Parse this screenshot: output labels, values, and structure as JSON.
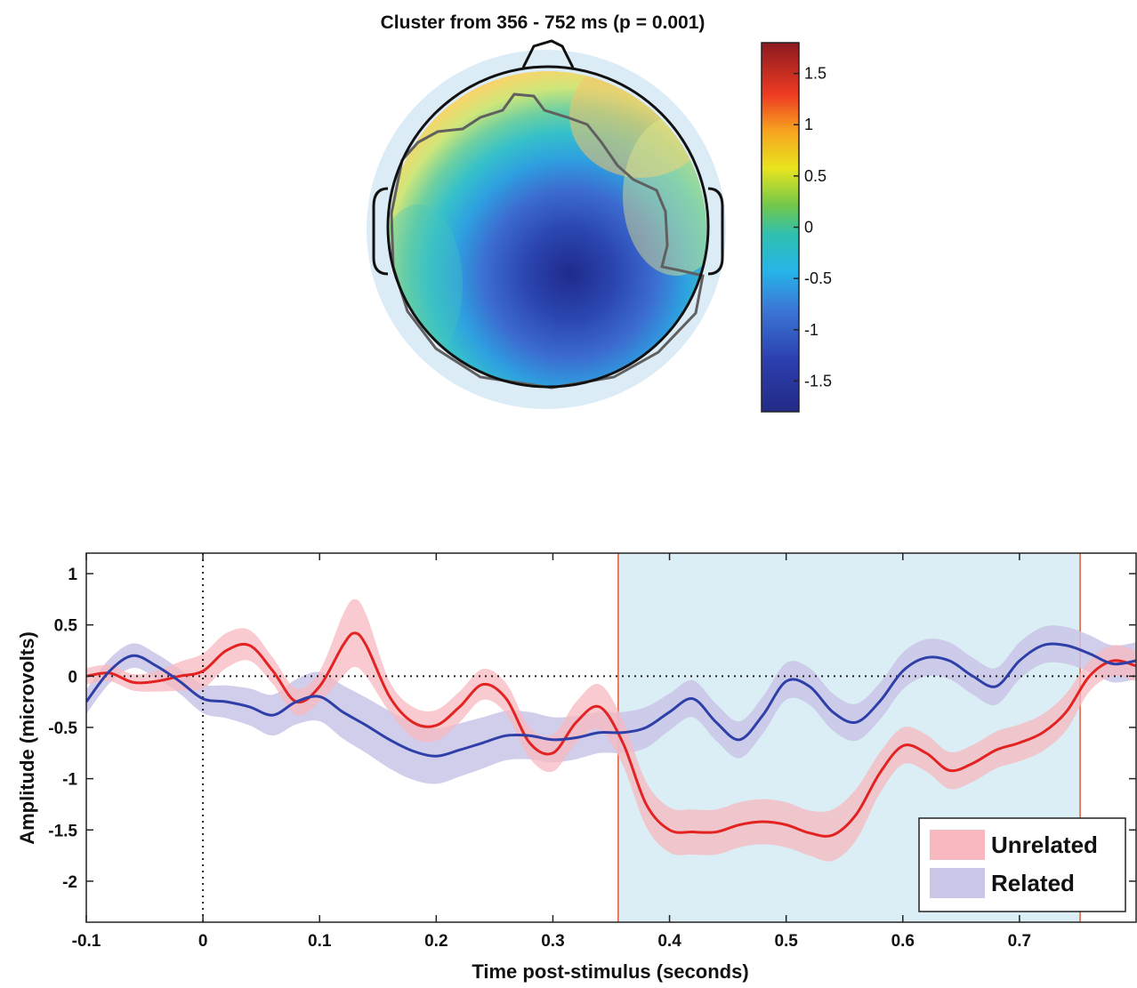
{
  "topomap": {
    "title": "Cluster from 356 - 752 ms (p = 0.001)"
  },
  "colorbar": {
    "range": [
      -1.8,
      1.8
    ],
    "ticks": [
      -1.5,
      -1,
      -0.5,
      0,
      0.5,
      1,
      1.5
    ],
    "tick_labels": [
      "-1.5",
      "-1",
      "-0.5",
      "0",
      "0.5",
      "1",
      "1.5"
    ],
    "colormap": "jet"
  },
  "chart_data": {
    "type": "line",
    "xlabel": "Time post-stimulus (seconds)",
    "ylabel": "Amplitude (microvolts)",
    "xlim": [
      -0.1,
      0.8
    ],
    "ylim": [
      -2.4,
      1.2
    ],
    "xticks": [
      -0.1,
      0,
      0.1,
      0.2,
      0.3,
      0.4,
      0.5,
      0.6,
      0.7
    ],
    "xtick_labels": [
      "-0.1",
      "0",
      "0.1",
      "0.2",
      "0.3",
      "0.4",
      "0.5",
      "0.6",
      "0.7"
    ],
    "yticks": [
      1,
      0.5,
      0,
      -0.5,
      -1,
      -1.5,
      -2
    ],
    "ytick_labels": [
      "1",
      "0.5",
      "0",
      "-0.5",
      "-1",
      "-1.5",
      "-2"
    ],
    "legend_position": "bottom-right",
    "cluster_window": [
      0.356,
      0.752
    ],
    "zero_lines": {
      "x": 0,
      "y": 0
    },
    "series": [
      {
        "name": "Unrelated",
        "line_color": "#e32222",
        "band_color": "#f7b8bf",
        "x": [
          -0.1,
          -0.08,
          -0.06,
          -0.04,
          -0.02,
          0.0,
          0.02,
          0.04,
          0.06,
          0.08,
          0.1,
          0.12,
          0.13,
          0.14,
          0.16,
          0.18,
          0.2,
          0.22,
          0.24,
          0.26,
          0.28,
          0.3,
          0.32,
          0.34,
          0.36,
          0.38,
          0.4,
          0.42,
          0.44,
          0.46,
          0.48,
          0.5,
          0.52,
          0.54,
          0.56,
          0.58,
          0.6,
          0.62,
          0.64,
          0.66,
          0.68,
          0.7,
          0.72,
          0.74,
          0.76,
          0.78,
          0.8
        ],
        "y": [
          0.0,
          0.03,
          -0.06,
          -0.05,
          0.0,
          0.05,
          0.25,
          0.3,
          0.05,
          -0.25,
          -0.1,
          0.3,
          0.42,
          0.3,
          -0.2,
          -0.45,
          -0.48,
          -0.3,
          -0.08,
          -0.22,
          -0.65,
          -0.75,
          -0.45,
          -0.3,
          -0.65,
          -1.25,
          -1.5,
          -1.52,
          -1.52,
          -1.45,
          -1.42,
          -1.45,
          -1.53,
          -1.55,
          -1.35,
          -0.95,
          -0.68,
          -0.75,
          -0.92,
          -0.85,
          -0.72,
          -0.65,
          -0.55,
          -0.35,
          0.0,
          0.15,
          0.1
        ],
        "band_halfwidth": [
          0.08,
          0.08,
          0.08,
          0.1,
          0.14,
          0.17,
          0.17,
          0.15,
          0.13,
          0.13,
          0.15,
          0.3,
          0.33,
          0.3,
          0.15,
          0.15,
          0.15,
          0.15,
          0.15,
          0.15,
          0.15,
          0.18,
          0.2,
          0.22,
          0.22,
          0.22,
          0.22,
          0.22,
          0.22,
          0.22,
          0.22,
          0.22,
          0.22,
          0.25,
          0.25,
          0.2,
          0.18,
          0.18,
          0.18,
          0.18,
          0.18,
          0.18,
          0.18,
          0.18,
          0.15,
          0.15,
          0.15
        ]
      },
      {
        "name": "Related",
        "line_color": "#2f3fa8",
        "band_color": "#c9c6e8",
        "x": [
          -0.1,
          -0.08,
          -0.06,
          -0.04,
          -0.02,
          0.0,
          0.02,
          0.04,
          0.06,
          0.08,
          0.1,
          0.12,
          0.14,
          0.16,
          0.18,
          0.2,
          0.22,
          0.24,
          0.26,
          0.28,
          0.3,
          0.32,
          0.34,
          0.36,
          0.38,
          0.4,
          0.42,
          0.44,
          0.46,
          0.48,
          0.5,
          0.52,
          0.54,
          0.56,
          0.58,
          0.6,
          0.62,
          0.64,
          0.66,
          0.68,
          0.7,
          0.72,
          0.74,
          0.76,
          0.78,
          0.8
        ],
        "y": [
          -0.25,
          0.05,
          0.2,
          0.1,
          -0.05,
          -0.22,
          -0.25,
          -0.3,
          -0.38,
          -0.25,
          -0.2,
          -0.35,
          -0.48,
          -0.62,
          -0.73,
          -0.78,
          -0.72,
          -0.65,
          -0.58,
          -0.58,
          -0.62,
          -0.6,
          -0.55,
          -0.55,
          -0.5,
          -0.35,
          -0.22,
          -0.45,
          -0.62,
          -0.38,
          -0.05,
          -0.1,
          -0.35,
          -0.45,
          -0.25,
          0.05,
          0.18,
          0.15,
          0.0,
          -0.1,
          0.15,
          0.3,
          0.3,
          0.22,
          0.12,
          0.15
        ],
        "band_halfwidth": [
          0.12,
          0.12,
          0.12,
          0.12,
          0.12,
          0.14,
          0.16,
          0.18,
          0.2,
          0.22,
          0.24,
          0.26,
          0.27,
          0.28,
          0.28,
          0.27,
          0.26,
          0.25,
          0.24,
          0.23,
          0.22,
          0.21,
          0.2,
          0.2,
          0.2,
          0.18,
          0.18,
          0.18,
          0.18,
          0.18,
          0.18,
          0.18,
          0.18,
          0.18,
          0.18,
          0.18,
          0.18,
          0.18,
          0.18,
          0.18,
          0.18,
          0.18,
          0.18,
          0.18,
          0.18,
          0.18
        ]
      }
    ]
  }
}
